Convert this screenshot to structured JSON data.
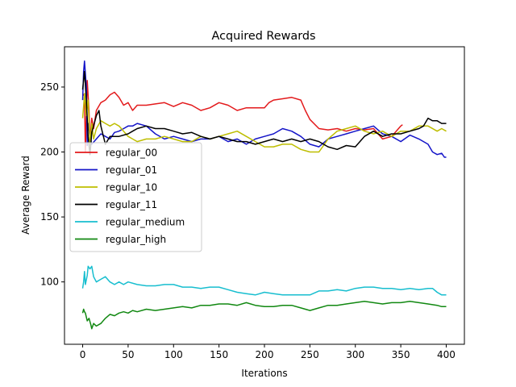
{
  "chart_data": {
    "type": "line",
    "title": "Acquired Rewards",
    "xlabel": "Iterations",
    "ylabel": "Average Reward",
    "xlim": [
      -20,
      420
    ],
    "ylim": [
      52,
      281
    ],
    "xticks": [
      0,
      50,
      100,
      150,
      200,
      250,
      300,
      350,
      400
    ],
    "yticks": [
      100,
      150,
      200,
      250
    ],
    "grid": false,
    "legend": "middle-left",
    "series": [
      {
        "name": "regular_00",
        "color": "#e31a1c",
        "points": [
          [
            0,
            245
          ],
          [
            2,
            243
          ],
          [
            3,
            200
          ],
          [
            5,
            255
          ],
          [
            7,
            232
          ],
          [
            8,
            208
          ],
          [
            10,
            226
          ],
          [
            12,
            218
          ],
          [
            15,
            232
          ],
          [
            20,
            238
          ],
          [
            25,
            240
          ],
          [
            30,
            244
          ],
          [
            35,
            246
          ],
          [
            40,
            242
          ],
          [
            45,
            236
          ],
          [
            50,
            238
          ],
          [
            55,
            232
          ],
          [
            60,
            236
          ],
          [
            70,
            236
          ],
          [
            80,
            237
          ],
          [
            90,
            238
          ],
          [
            100,
            235
          ],
          [
            110,
            238
          ],
          [
            120,
            236
          ],
          [
            130,
            232
          ],
          [
            140,
            234
          ],
          [
            150,
            238
          ],
          [
            160,
            236
          ],
          [
            170,
            232
          ],
          [
            180,
            234
          ],
          [
            190,
            234
          ],
          [
            200,
            234
          ],
          [
            205,
            238
          ],
          [
            210,
            240
          ],
          [
            220,
            241
          ],
          [
            230,
            242
          ],
          [
            240,
            240
          ],
          [
            245,
            232
          ],
          [
            250,
            225
          ],
          [
            260,
            218
          ],
          [
            270,
            217
          ],
          [
            280,
            218
          ],
          [
            290,
            216
          ],
          [
            300,
            218
          ],
          [
            310,
            217
          ],
          [
            320,
            218
          ],
          [
            330,
            210
          ],
          [
            340,
            212
          ],
          [
            350,
            220
          ],
          [
            352,
            221
          ]
        ]
      },
      {
        "name": "regular_01",
        "color": "#1414c8",
        "points": [
          [
            0,
            240
          ],
          [
            1,
            262
          ],
          [
            2,
            270
          ],
          [
            4,
            250
          ],
          [
            5,
            205
          ],
          [
            6,
            222
          ],
          [
            8,
            212
          ],
          [
            10,
            206
          ],
          [
            15,
            210
          ],
          [
            20,
            214
          ],
          [
            25,
            212
          ],
          [
            30,
            210
          ],
          [
            35,
            215
          ],
          [
            40,
            216
          ],
          [
            45,
            218
          ],
          [
            50,
            220
          ],
          [
            55,
            220
          ],
          [
            60,
            222
          ],
          [
            70,
            220
          ],
          [
            80,
            214
          ],
          [
            90,
            210
          ],
          [
            100,
            212
          ],
          [
            110,
            210
          ],
          [
            120,
            208
          ],
          [
            130,
            210
          ],
          [
            140,
            210
          ],
          [
            150,
            212
          ],
          [
            160,
            208
          ],
          [
            170,
            210
          ],
          [
            180,
            206
          ],
          [
            190,
            210
          ],
          [
            200,
            212
          ],
          [
            210,
            214
          ],
          [
            220,
            218
          ],
          [
            230,
            216
          ],
          [
            240,
            212
          ],
          [
            250,
            206
          ],
          [
            260,
            204
          ],
          [
            270,
            210
          ],
          [
            280,
            212
          ],
          [
            290,
            214
          ],
          [
            300,
            216
          ],
          [
            310,
            218
          ],
          [
            320,
            220
          ],
          [
            330,
            214
          ],
          [
            340,
            212
          ],
          [
            350,
            208
          ],
          [
            360,
            213
          ],
          [
            370,
            210
          ],
          [
            380,
            206
          ],
          [
            385,
            200
          ],
          [
            390,
            198
          ],
          [
            395,
            199
          ],
          [
            398,
            196
          ],
          [
            400,
            196
          ]
        ]
      },
      {
        "name": "regular_10",
        "color": "#bebe00",
        "points": [
          [
            0,
            226
          ],
          [
            1,
            235
          ],
          [
            2,
            245
          ],
          [
            4,
            228
          ],
          [
            6,
            240
          ],
          [
            8,
            205
          ],
          [
            10,
            222
          ],
          [
            12,
            210
          ],
          [
            15,
            218
          ],
          [
            20,
            224
          ],
          [
            25,
            222
          ],
          [
            30,
            220
          ],
          [
            35,
            222
          ],
          [
            40,
            220
          ],
          [
            45,
            216
          ],
          [
            50,
            212
          ],
          [
            55,
            210
          ],
          [
            60,
            208
          ],
          [
            70,
            210
          ],
          [
            80,
            210
          ],
          [
            90,
            212
          ],
          [
            100,
            210
          ],
          [
            110,
            208
          ],
          [
            120,
            208
          ],
          [
            130,
            212
          ],
          [
            140,
            210
          ],
          [
            150,
            212
          ],
          [
            160,
            214
          ],
          [
            170,
            216
          ],
          [
            180,
            212
          ],
          [
            190,
            208
          ],
          [
            200,
            204
          ],
          [
            210,
            204
          ],
          [
            220,
            206
          ],
          [
            230,
            206
          ],
          [
            240,
            202
          ],
          [
            250,
            200
          ],
          [
            260,
            200
          ],
          [
            270,
            210
          ],
          [
            280,
            216
          ],
          [
            290,
            218
          ],
          [
            300,
            220
          ],
          [
            310,
            216
          ],
          [
            320,
            214
          ],
          [
            330,
            216
          ],
          [
            340,
            212
          ],
          [
            350,
            216
          ],
          [
            360,
            216
          ],
          [
            370,
            220
          ],
          [
            380,
            220
          ],
          [
            390,
            216
          ],
          [
            395,
            218
          ],
          [
            400,
            216
          ]
        ]
      },
      {
        "name": "regular_11",
        "color": "#000000",
        "points": [
          [
            0,
            248
          ],
          [
            2,
            262
          ],
          [
            4,
            240
          ],
          [
            6,
            212
          ],
          [
            8,
            198
          ],
          [
            10,
            215
          ],
          [
            12,
            220
          ],
          [
            15,
            228
          ],
          [
            18,
            232
          ],
          [
            20,
            220
          ],
          [
            25,
            206
          ],
          [
            30,
            212
          ],
          [
            40,
            212
          ],
          [
            50,
            214
          ],
          [
            55,
            216
          ],
          [
            60,
            218
          ],
          [
            70,
            220
          ],
          [
            80,
            218
          ],
          [
            90,
            218
          ],
          [
            100,
            216
          ],
          [
            110,
            214
          ],
          [
            120,
            215
          ],
          [
            130,
            212
          ],
          [
            140,
            210
          ],
          [
            150,
            212
          ],
          [
            160,
            210
          ],
          [
            170,
            208
          ],
          [
            180,
            208
          ],
          [
            190,
            206
          ],
          [
            200,
            208
          ],
          [
            210,
            210
          ],
          [
            220,
            208
          ],
          [
            230,
            210
          ],
          [
            240,
            208
          ],
          [
            250,
            210
          ],
          [
            260,
            208
          ],
          [
            270,
            204
          ],
          [
            280,
            202
          ],
          [
            290,
            205
          ],
          [
            300,
            204
          ],
          [
            310,
            212
          ],
          [
            320,
            216
          ],
          [
            330,
            212
          ],
          [
            340,
            214
          ],
          [
            350,
            214
          ],
          [
            360,
            216
          ],
          [
            370,
            218
          ],
          [
            375,
            220
          ],
          [
            380,
            226
          ],
          [
            385,
            224
          ],
          [
            390,
            224
          ],
          [
            395,
            222
          ],
          [
            400,
            222
          ]
        ]
      },
      {
        "name": "regular_medium",
        "color": "#17becf",
        "points": [
          [
            0,
            95
          ],
          [
            1,
            100
          ],
          [
            2,
            108
          ],
          [
            3,
            98
          ],
          [
            5,
            105
          ],
          [
            6,
            112
          ],
          [
            8,
            110
          ],
          [
            10,
            112
          ],
          [
            12,
            104
          ],
          [
            15,
            100
          ],
          [
            20,
            102
          ],
          [
            25,
            104
          ],
          [
            30,
            100
          ],
          [
            35,
            98
          ],
          [
            40,
            100
          ],
          [
            45,
            98
          ],
          [
            50,
            100
          ],
          [
            60,
            98
          ],
          [
            70,
            97
          ],
          [
            80,
            97
          ],
          [
            90,
            98
          ],
          [
            100,
            98
          ],
          [
            110,
            96
          ],
          [
            120,
            96
          ],
          [
            130,
            95
          ],
          [
            140,
            96
          ],
          [
            150,
            96
          ],
          [
            160,
            94
          ],
          [
            170,
            92
          ],
          [
            180,
            91
          ],
          [
            190,
            90
          ],
          [
            200,
            92
          ],
          [
            210,
            91
          ],
          [
            220,
            90
          ],
          [
            230,
            90
          ],
          [
            240,
            90
          ],
          [
            250,
            90
          ],
          [
            260,
            93
          ],
          [
            270,
            93
          ],
          [
            280,
            94
          ],
          [
            290,
            93
          ],
          [
            300,
            95
          ],
          [
            310,
            96
          ],
          [
            320,
            96
          ],
          [
            330,
            95
          ],
          [
            340,
            95
          ],
          [
            350,
            94
          ],
          [
            360,
            95
          ],
          [
            370,
            94
          ],
          [
            380,
            95
          ],
          [
            385,
            95
          ],
          [
            390,
            92
          ],
          [
            395,
            90
          ],
          [
            400,
            90
          ]
        ]
      },
      {
        "name": "regular_high",
        "color": "#118811",
        "points": [
          [
            0,
            76
          ],
          [
            1,
            79
          ],
          [
            2,
            77
          ],
          [
            3,
            76
          ],
          [
            5,
            70
          ],
          [
            7,
            72
          ],
          [
            9,
            67
          ],
          [
            10,
            64
          ],
          [
            12,
            68
          ],
          [
            15,
            66
          ],
          [
            20,
            68
          ],
          [
            25,
            72
          ],
          [
            30,
            75
          ],
          [
            35,
            74
          ],
          [
            40,
            76
          ],
          [
            45,
            77
          ],
          [
            50,
            76
          ],
          [
            55,
            78
          ],
          [
            60,
            77
          ],
          [
            70,
            79
          ],
          [
            80,
            78
          ],
          [
            90,
            79
          ],
          [
            100,
            80
          ],
          [
            110,
            81
          ],
          [
            120,
            80
          ],
          [
            130,
            82
          ],
          [
            140,
            82
          ],
          [
            150,
            83
          ],
          [
            160,
            83
          ],
          [
            170,
            82
          ],
          [
            180,
            84
          ],
          [
            190,
            82
          ],
          [
            200,
            81
          ],
          [
            210,
            81
          ],
          [
            220,
            82
          ],
          [
            230,
            82
          ],
          [
            240,
            80
          ],
          [
            250,
            78
          ],
          [
            260,
            80
          ],
          [
            270,
            82
          ],
          [
            280,
            82
          ],
          [
            290,
            83
          ],
          [
            300,
            84
          ],
          [
            310,
            85
          ],
          [
            320,
            84
          ],
          [
            330,
            83
          ],
          [
            340,
            84
          ],
          [
            350,
            84
          ],
          [
            360,
            85
          ],
          [
            370,
            84
          ],
          [
            380,
            83
          ],
          [
            390,
            82
          ],
          [
            395,
            81
          ],
          [
            400,
            81
          ]
        ]
      }
    ]
  }
}
